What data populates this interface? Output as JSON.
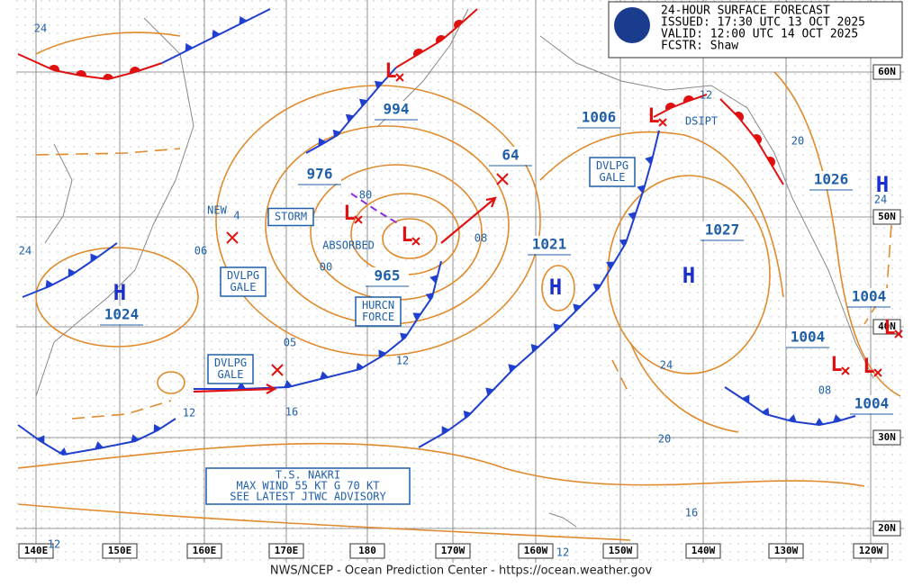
{
  "header": {
    "title": "24-HOUR SURFACE FORECAST",
    "issued": "ISSUED: 17:30 UTC 13 OCT 2025",
    "valid": "VALID:  12:00 UTC 14 OCT 2025",
    "forecaster": "FCSTR:  Shaw"
  },
  "footer": "NWS/NCEP - Ocean Prediction Center - https://ocean.weather.gov",
  "longitude_labels": [
    "140E",
    "150E",
    "160E",
    "170E",
    "180",
    "170W",
    "160W",
    "150W",
    "140W",
    "130W",
    "120W"
  ],
  "latitude_labels": [
    "60N",
    "50N",
    "40N",
    "30N",
    "20N"
  ],
  "pressures": [
    "994",
    "976",
    "965",
    "1006",
    "1021",
    "1027",
    "1026",
    "1024",
    "1004",
    "1004",
    "1004",
    "64"
  ],
  "boxed_labels": [
    [
      "STORM"
    ],
    [
      "DVLPG",
      "GALE"
    ],
    [
      "HURCN",
      "FORCE"
    ],
    [
      "DVLPG",
      "GALE"
    ],
    [
      "DVLPG",
      "GALE"
    ]
  ],
  "annotations": [
    "NEW",
    "ABSORBED",
    "DSIPT"
  ],
  "isobar_labels": [
    "24",
    "06",
    "4",
    "80",
    "00",
    "08",
    "05",
    "12",
    "16",
    "12",
    "24",
    "20",
    "16",
    "20",
    "24",
    "08",
    "12",
    "24",
    "12",
    "12"
  ],
  "highs": [
    "H",
    "H",
    "H",
    "H"
  ],
  "lows": [
    "L",
    "L",
    "L",
    "L",
    "L",
    "L",
    "L"
  ],
  "advisory": [
    "T.S. NAKRI",
    "MAX WIND 55 KT G 70 KT",
    "SEE LATEST JTWC ADVISORY"
  ]
}
